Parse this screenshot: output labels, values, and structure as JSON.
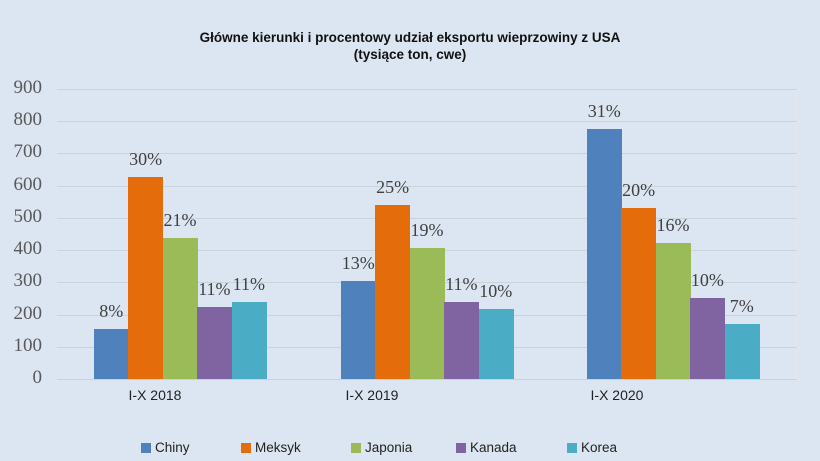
{
  "chart_data": {
    "type": "bar",
    "title": "Główne kierunki i procentowy udział eksportu wieprzowiny z USA",
    "subtitle": "(tysiące ton, cwe)",
    "xlabel": "",
    "ylabel": "",
    "ylim": [
      0,
      900
    ],
    "yticks": [
      0,
      100,
      200,
      300,
      400,
      500,
      600,
      700,
      800,
      900
    ],
    "grid": true,
    "legend_position": "bottom",
    "categories": [
      "I-X 2018",
      "I-X 2019",
      "I-X 2020"
    ],
    "series": [
      {
        "name": "Chiny",
        "color": "#4f81bd",
        "values": [
          155,
          304,
          776
        ],
        "labels": [
          "8%",
          "13%",
          "31%"
        ]
      },
      {
        "name": "Meksyk",
        "color": "#e46c0a",
        "values": [
          627,
          540,
          531
        ],
        "labels": [
          "30%",
          "25%",
          "20%"
        ]
      },
      {
        "name": "Japonia",
        "color": "#9bbb59",
        "values": [
          438,
          407,
          422
        ],
        "labels": [
          "21%",
          "19%",
          "16%"
        ]
      },
      {
        "name": "Kanada",
        "color": "#8064a2",
        "values": [
          224,
          239,
          251
        ],
        "labels": [
          "11%",
          "11%",
          "10%"
        ]
      },
      {
        "name": "Korea",
        "color": "#4bacc6",
        "values": [
          239,
          217,
          171
        ],
        "labels": [
          "11%",
          "10%",
          "7%"
        ]
      }
    ]
  }
}
